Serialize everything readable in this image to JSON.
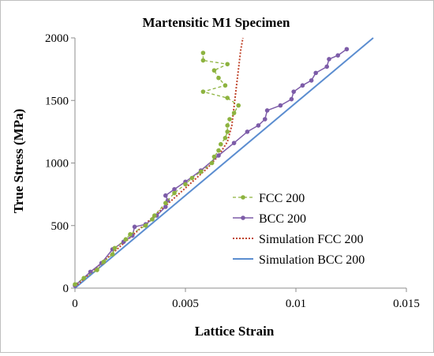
{
  "chart_data": {
    "type": "line",
    "title": "Martensitic M1 Specimen",
    "xlabel": "Lattice Strain",
    "ylabel": "True Stress (MPa)",
    "xlim": [
      0,
      0.015
    ],
    "ylim": [
      0,
      2000
    ],
    "x_ticks": [
      0,
      0.005,
      0.01,
      0.015
    ],
    "x_tick_labels": [
      "0",
      "0.005",
      "0.01",
      "0.015"
    ],
    "y_ticks": [
      0,
      500,
      1000,
      1500,
      2000
    ],
    "y_tick_labels": [
      "0",
      "500",
      "1000",
      "1500",
      "2000"
    ],
    "grid": false,
    "legend_position": "bottom-right",
    "series": [
      {
        "name": "FCC 200",
        "color": "#8db33f",
        "style": "dashed-markers",
        "points": [
          [
            0.0,
            30
          ],
          [
            0.0004,
            80
          ],
          [
            0.001,
            145
          ],
          [
            0.0013,
            210
          ],
          [
            0.0017,
            270
          ],
          [
            0.0018,
            320
          ],
          [
            0.0023,
            390
          ],
          [
            0.0025,
            430
          ],
          [
            0.0032,
            500
          ],
          [
            0.0035,
            550
          ],
          [
            0.0036,
            580
          ],
          [
            0.0041,
            680
          ],
          [
            0.0045,
            760
          ],
          [
            0.005,
            830
          ],
          [
            0.0053,
            880
          ],
          [
            0.0057,
            930
          ],
          [
            0.0062,
            1000
          ],
          [
            0.0063,
            1050
          ],
          [
            0.0065,
            1100
          ],
          [
            0.0066,
            1150
          ],
          [
            0.0068,
            1200
          ],
          [
            0.0069,
            1250
          ],
          [
            0.0069,
            1300
          ],
          [
            0.007,
            1350
          ],
          [
            0.0072,
            1400
          ],
          [
            0.0074,
            1460
          ],
          [
            0.0069,
            1520
          ],
          [
            0.0058,
            1570
          ],
          [
            0.0068,
            1620
          ],
          [
            0.0065,
            1680
          ],
          [
            0.0063,
            1740
          ],
          [
            0.0069,
            1790
          ],
          [
            0.0058,
            1820
          ],
          [
            0.0058,
            1880
          ]
        ]
      },
      {
        "name": "BCC 200",
        "color": "#7d5ca8",
        "style": "solid-markers",
        "points": [
          [
            0.0,
            20
          ],
          [
            0.0007,
            130
          ],
          [
            0.0012,
            200
          ],
          [
            0.0017,
            310
          ],
          [
            0.0022,
            370
          ],
          [
            0.0026,
            420
          ],
          [
            0.0027,
            490
          ],
          [
            0.0032,
            510
          ],
          [
            0.0037,
            580
          ],
          [
            0.0041,
            650
          ],
          [
            0.0042,
            700
          ],
          [
            0.0041,
            740
          ],
          [
            0.0045,
            790
          ],
          [
            0.005,
            850
          ],
          [
            0.0057,
            940
          ],
          [
            0.0065,
            1060
          ],
          [
            0.0072,
            1160
          ],
          [
            0.0078,
            1250
          ],
          [
            0.0083,
            1300
          ],
          [
            0.0086,
            1350
          ],
          [
            0.0087,
            1420
          ],
          [
            0.0093,
            1460
          ],
          [
            0.0098,
            1510
          ],
          [
            0.0099,
            1570
          ],
          [
            0.0103,
            1620
          ],
          [
            0.0107,
            1660
          ],
          [
            0.0109,
            1720
          ],
          [
            0.0114,
            1770
          ],
          [
            0.0115,
            1830
          ],
          [
            0.0119,
            1860
          ],
          [
            0.0123,
            1910
          ]
        ]
      },
      {
        "name": "Simulation FCC 200",
        "color": "#c0442b",
        "style": "dotted",
        "points": [
          [
            0.0,
            10
          ],
          [
            0.005,
            800
          ],
          [
            0.006,
            960
          ],
          [
            0.0065,
            1060
          ],
          [
            0.0069,
            1170
          ],
          [
            0.0071,
            1300
          ],
          [
            0.0072,
            1450
          ],
          [
            0.0073,
            1600
          ],
          [
            0.0074,
            1750
          ],
          [
            0.0075,
            1900
          ],
          [
            0.0076,
            2000
          ]
        ]
      },
      {
        "name": "Simulation BCC 200",
        "color": "#5b8dd0",
        "style": "solid",
        "points": [
          [
            0.0,
            0
          ],
          [
            0.0135,
            2000
          ]
        ]
      }
    ]
  }
}
